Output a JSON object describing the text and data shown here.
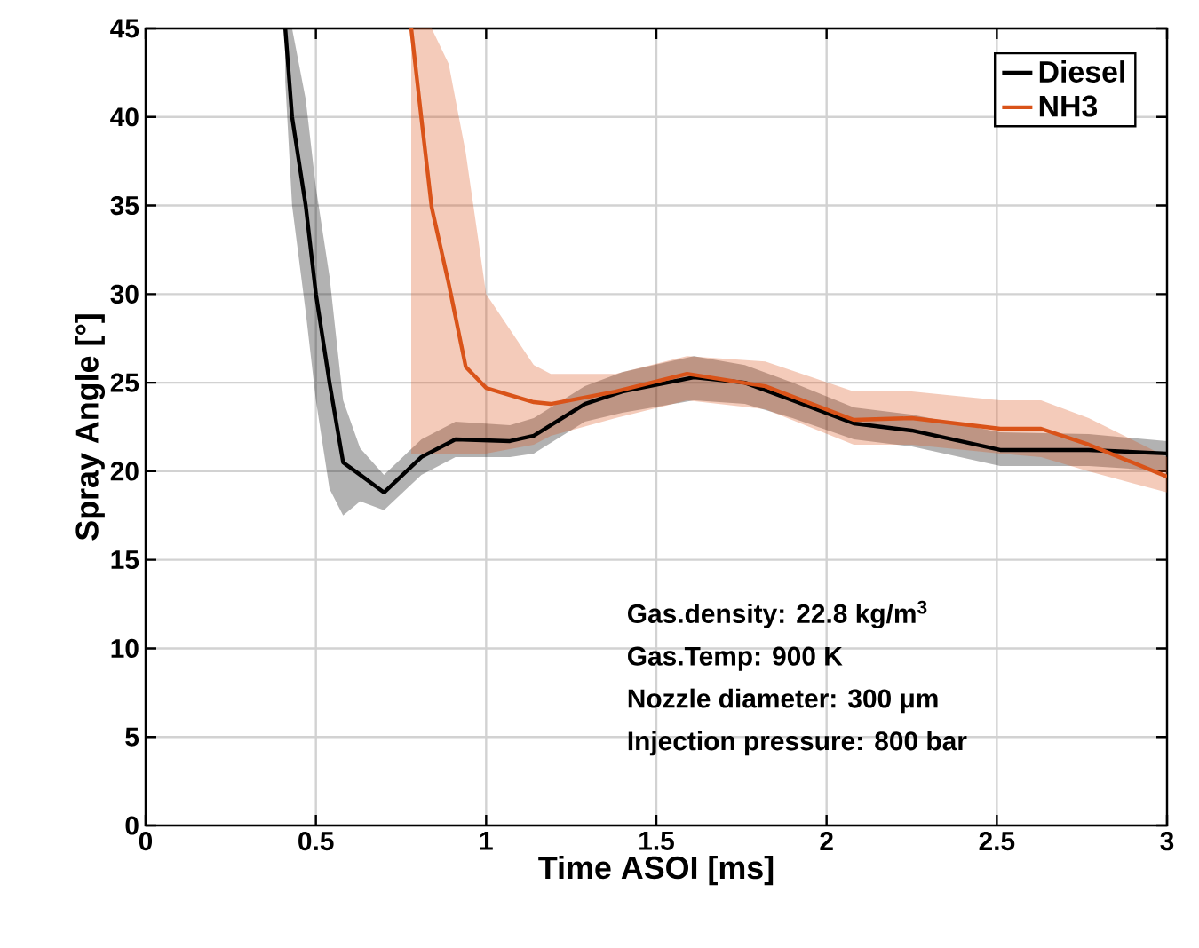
{
  "chart_data": {
    "type": "line",
    "xlabel": "Time ASOI [ms]",
    "ylabel": "Spray Angle [°]",
    "xlim": [
      0,
      3
    ],
    "ylim": [
      0,
      45
    ],
    "xticks": [
      0,
      0.5,
      1,
      1.5,
      2,
      2.5,
      3
    ],
    "yticks": [
      0,
      5,
      10,
      15,
      20,
      25,
      30,
      35,
      40,
      45
    ],
    "grid": true,
    "legend": "top right",
    "marker": "none",
    "line_style": "solid",
    "annotations": [
      "Gas.density: 22.8 kg/m$^{3}$",
      "Gas.Temp: 900 K",
      "Nozzle diameter: 300 μm",
      "Injection pressure: 800 bar"
    ],
    "series": [
      {
        "name": "Diesel",
        "color": "#000000",
        "x": [
          0.41,
          0.43,
          0.47,
          0.5,
          0.54,
          0.58,
          0.63,
          0.7,
          0.81,
          0.91,
          1.07,
          1.14,
          1.29,
          1.4,
          1.61,
          1.76,
          1.9,
          2.08,
          2.25,
          2.51,
          2.77,
          3.0
        ],
        "values": [
          45,
          40,
          35,
          30,
          25,
          20.5,
          19.8,
          18.8,
          20.8,
          21.8,
          21.7,
          22.0,
          23.8,
          24.5,
          25.3,
          25.0,
          24.0,
          22.7,
          22.3,
          21.2,
          21.2,
          21.0
        ],
        "lower": [
          42,
          35,
          29,
          24,
          19,
          17.5,
          18.3,
          17.8,
          19.8,
          20.8,
          20.8,
          21.0,
          22.8,
          23.3,
          24.0,
          23.8,
          23.0,
          21.8,
          21.4,
          20.3,
          20.3,
          20.0
        ],
        "upper": [
          45,
          45,
          41,
          36,
          31,
          24,
          21.3,
          19.8,
          21.8,
          22.8,
          22.6,
          23.0,
          24.8,
          25.6,
          26.5,
          26.0,
          25.0,
          23.6,
          23.2,
          22.2,
          22.1,
          21.7
        ]
      },
      {
        "name": "NH3",
        "color": "#d95319",
        "x": [
          0.78,
          0.81,
          0.84,
          0.89,
          0.94,
          1.0,
          1.14,
          1.19,
          1.38,
          1.59,
          1.82,
          2.08,
          2.25,
          2.51,
          2.63,
          2.77,
          3.0
        ],
        "values": [
          45,
          39.9,
          34.9,
          30.6,
          25.9,
          24.7,
          23.9,
          23.8,
          24.5,
          25.5,
          24.8,
          22.9,
          23.0,
          22.4,
          22.4,
          21.5,
          19.7
        ],
        "lower": [
          21,
          21,
          21,
          21,
          21,
          21,
          21.5,
          22,
          23,
          24,
          23.5,
          21.5,
          21.5,
          21,
          20.8,
          20,
          18.8
        ],
        "upper": [
          45,
          45,
          45,
          43,
          38,
          30,
          26,
          25.5,
          25.5,
          26.5,
          26.2,
          24.5,
          24.5,
          24,
          24,
          23,
          20.8
        ]
      }
    ]
  }
}
